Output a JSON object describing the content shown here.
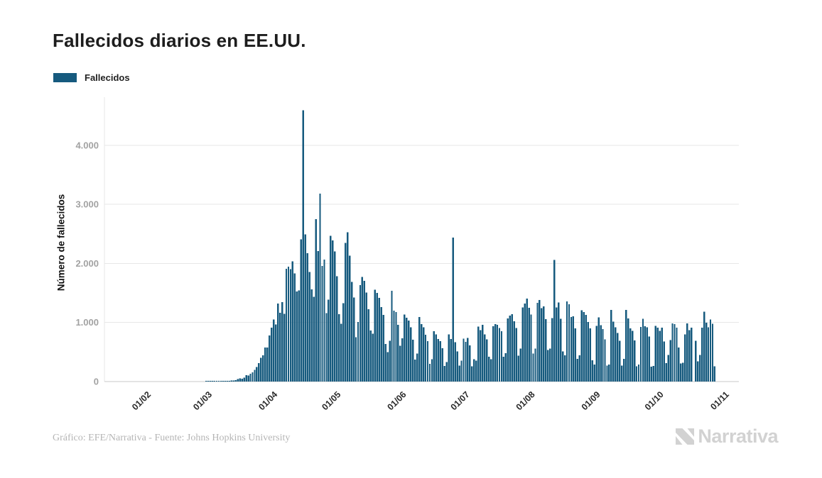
{
  "page": {
    "title": "Fallecidos diarios en EE.UU."
  },
  "legend": {
    "label": "Fallecidos"
  },
  "footer": {
    "credit": "Gráfico: EFE/Narrativa - Fuente: Johns Hopkins University"
  },
  "logo": {
    "text": "Narrativa"
  },
  "colors": {
    "bar": "#165a7e",
    "grid_line": "#e7e7e7",
    "axis_line": "#c8c8c8",
    "y_tick_text": "#a2a2a2",
    "x_tick_text": "#2b2b2b",
    "logo_gray": "#d2d2d2"
  },
  "chart_data": {
    "type": "bar",
    "title": "Fallecidos diarios en EE.UU.",
    "xlabel": "",
    "ylabel": "Número de fallecidos",
    "legend_entries": [
      "Fallecidos"
    ],
    "legend_position": "top-left",
    "grid": true,
    "ylim": [
      0,
      4650
    ],
    "y_ticks": [
      {
        "value": 0,
        "label": "0"
      },
      {
        "value": 1000,
        "label": "1.000"
      },
      {
        "value": 2000,
        "label": "2.000"
      },
      {
        "value": 3000,
        "label": "3.000"
      },
      {
        "value": 4000,
        "label": "4.000"
      }
    ],
    "x_ticks": [
      {
        "day": 0,
        "label": "01/02"
      },
      {
        "day": 29,
        "label": "01/03"
      },
      {
        "day": 60,
        "label": "01/04"
      },
      {
        "day": 90,
        "label": "01/05"
      },
      {
        "day": 121,
        "label": "01/06"
      },
      {
        "day": 151,
        "label": "01/07"
      },
      {
        "day": 182,
        "label": "01/08"
      },
      {
        "day": 213,
        "label": "01/09"
      },
      {
        "day": 243,
        "label": "01/10"
      },
      {
        "day": 274,
        "label": "01/11"
      }
    ],
    "series": [
      {
        "name": "Fallecidos",
        "first_bar_label": "01/02",
        "values": [
          0,
          0,
          0,
          0,
          0,
          0,
          0,
          0,
          0,
          0,
          0,
          0,
          0,
          0,
          0,
          0,
          0,
          0,
          0,
          0,
          0,
          0,
          0,
          0,
          0,
          0,
          0,
          0,
          1,
          1,
          2,
          4,
          3,
          2,
          4,
          4,
          5,
          7,
          10,
          12,
          19,
          18,
          23,
          41,
          56,
          49,
          68,
          110,
          103,
          134,
          154,
          200,
          247,
          313,
          400,
          445,
          577,
          575,
          780,
          912,
          1049,
          968,
          1321,
          1165,
          1344,
          1146,
          1906,
          1943,
          1900,
          2035,
          1830,
          1522,
          1541,
          2408,
          4591,
          2494,
          2172,
          1856,
          1561,
          1433,
          2748,
          2207,
          3179,
          1957,
          2065,
          1157,
          1384,
          2470,
          2390,
          2201,
          1781,
          1139,
          981,
          1324,
          2350,
          2528,
          2129,
          1687,
          1422,
          750,
          1008,
          1630,
          1772,
          1707,
          1508,
          1224,
          865,
          808,
          1552,
          1501,
          1418,
          1260,
          1129,
          638,
          500,
          693,
          1535,
          1199,
          1175,
          960,
          605,
          730,
          1134,
          1083,
          1031,
          921,
          709,
          373,
          476,
          1093,
          972,
          918,
          792,
          684,
          300,
          380,
          851,
          800,
          722,
          683,
          565,
          267,
          330,
          800,
          722,
          2437,
          666,
          510,
          271,
          352,
          724,
          670,
          740,
          614,
          260,
          376,
          356,
          933,
          870,
          960,
          800,
          717,
          420,
          380,
          935,
          970,
          963,
          908,
          853,
          420,
          478,
          1071,
          1117,
          1140,
          1019,
          908,
          441,
          560,
          1253,
          1319,
          1403,
          1250,
          1133,
          474,
          559,
          1330,
          1380,
          1240,
          1270,
          1054,
          532,
          561,
          1077,
          2060,
          1257,
          1338,
          1061,
          512,
          447,
          1357,
          1311,
          1091,
          1104,
          901,
          387,
          443,
          1205,
          1175,
          1131,
          1008,
          901,
          363,
          290,
          944,
          1089,
          953,
          886,
          712,
          268,
          286,
          1213,
          1016,
          920,
          824,
          690,
          270,
          384,
          1215,
          1068,
          900,
          857,
          694,
          257,
          290,
          926,
          1063,
          938,
          919,
          763,
          254,
          263,
          942,
          914,
          860,
          910,
          680,
          310,
          450,
          700,
          987,
          970,
          910,
          577,
          309,
          320,
          800,
          987,
          869,
          913,
          0,
          689,
          340,
          450,
          915,
          1180,
          994,
          920,
          1050,
          980,
          260
        ]
      }
    ]
  }
}
